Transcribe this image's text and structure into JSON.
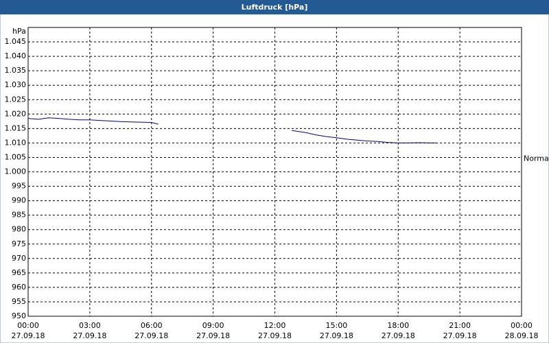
{
  "chart_data": {
    "type": "line",
    "title": "Luftdruck [hPa]",
    "ylabel": "hPa",
    "x": [
      0,
      0.5,
      1,
      1.5,
      2,
      2.5,
      3,
      3.5,
      4,
      4.5,
      5,
      5.5,
      6,
      6.33,
      9,
      12.83,
      13.5,
      14,
      14.5,
      15,
      15.5,
      16,
      16.5,
      17,
      17.5,
      18,
      18.5,
      19,
      19.5,
      19.83
    ],
    "values": [
      1018.5,
      1018.2,
      1018.7,
      1018.5,
      1018.2,
      1018.0,
      1018.0,
      1017.8,
      1017.6,
      1017.4,
      1017.3,
      1017.2,
      1017.1,
      1016.5,
      null,
      1014.3,
      1013.6,
      1012.8,
      1012.2,
      1011.8,
      1011.3,
      1011.0,
      1010.7,
      1010.5,
      1010.2,
      1010.0,
      1010.0,
      1010.1,
      1010.0,
      1010.0
    ],
    "color": "#000080",
    "xlim": [
      0,
      24
    ],
    "xticks": [
      {
        "value": 0,
        "label": "00:00"
      },
      {
        "value": 3,
        "label": "03:00"
      },
      {
        "value": 6,
        "label": "06:00"
      },
      {
        "value": 9,
        "label": "09:00"
      },
      {
        "value": 12,
        "label": "12:00"
      },
      {
        "value": 15,
        "label": "15:00"
      },
      {
        "value": 18,
        "label": "18:00"
      },
      {
        "value": 21,
        "label": "21:00"
      },
      {
        "value": 24,
        "label": "00:00"
      }
    ],
    "xtick_dates": [
      "27.09.18",
      "27.09.18",
      "27.09.18",
      "27.09.18",
      "27.09.18",
      "27.09.18",
      "27.09.18",
      "27.09.18",
      "28.09.18"
    ],
    "ylim": [
      950,
      1050
    ],
    "yticks": [
      950,
      955,
      960,
      965,
      970,
      975,
      980,
      985,
      990,
      995,
      {
        "value": 1000,
        "label": "1.000"
      },
      {
        "value": 1005,
        "label": "1.005"
      },
      {
        "value": 1010,
        "label": "1.010"
      },
      {
        "value": 1015,
        "label": "1.015"
      },
      {
        "value": 1020,
        "label": "1.020"
      },
      {
        "value": 1025,
        "label": "1.025"
      },
      {
        "value": 1030,
        "label": "1.030"
      },
      {
        "value": 1035,
        "label": "1.035"
      },
      {
        "value": 1040,
        "label": "1.040"
      },
      {
        "value": 1045,
        "label": "1.045"
      }
    ],
    "annotation": {
      "text": "Normal",
      "value": 1004.5
    },
    "grid": true
  }
}
